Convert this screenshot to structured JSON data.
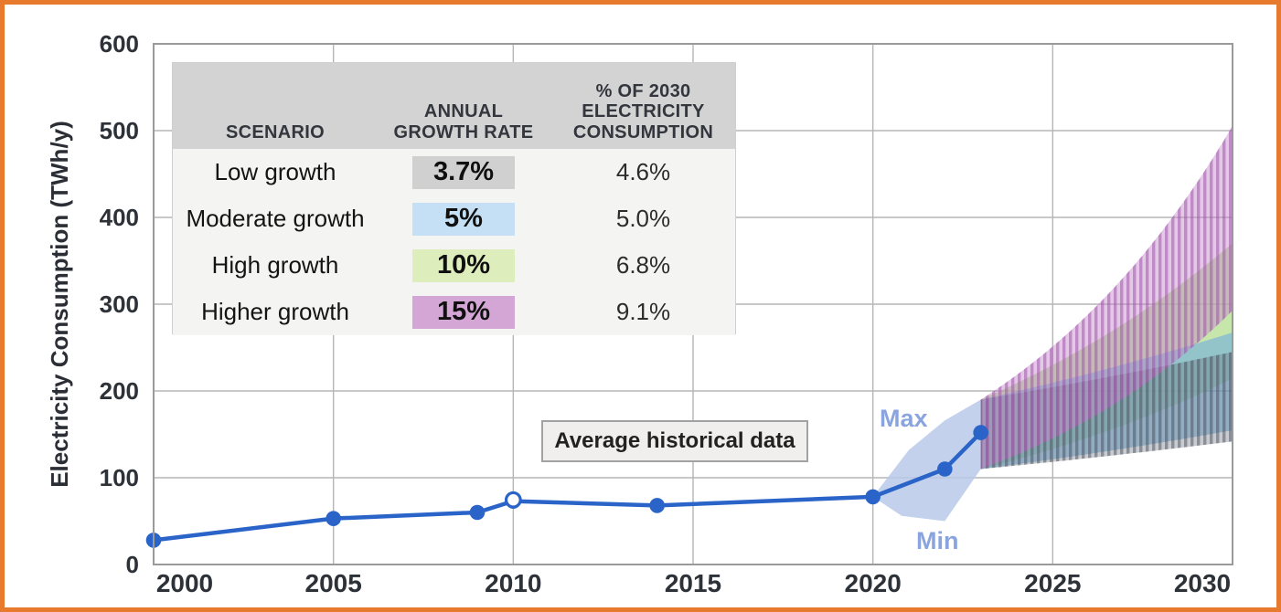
{
  "frame": {
    "border_color": "#e87a2d"
  },
  "annotations": {
    "avg_box": "Average historical data",
    "max": "Max",
    "min": "Min"
  },
  "table": {
    "headers": [
      "SCENARIO",
      "ANNUAL\nGROWTH RATE",
      "% OF 2030\nELECTRICITY\nCONSUMPTION"
    ],
    "rows": [
      {
        "scenario": "Low growth",
        "growth_rate": "3.7%",
        "chip_color": "#d0d0d0",
        "share_2030": "4.6%"
      },
      {
        "scenario": "Moderate growth",
        "growth_rate": "5%",
        "chip_color": "#c5e0f5",
        "share_2030": "5.0%"
      },
      {
        "scenario": "High growth",
        "growth_rate": "10%",
        "chip_color": "#ddedbc",
        "share_2030": "6.8%"
      },
      {
        "scenario": "Higher growth",
        "growth_rate": "15%",
        "chip_color": "#d4a6d6",
        "share_2030": "9.1%"
      }
    ]
  },
  "chart_data": {
    "type": "line",
    "title": "",
    "xlabel": "",
    "ylabel": "Electricity Consumption (TWh/y)",
    "xlim": [
      2000,
      2030
    ],
    "ylim": [
      0,
      600
    ],
    "x_ticks": [
      2000,
      2005,
      2010,
      2015,
      2020,
      2025,
      2030
    ],
    "y_ticks": [
      0,
      100,
      200,
      300,
      400,
      500,
      600
    ],
    "grid": true,
    "line_color": "#2a64c8",
    "historical_points": [
      {
        "year": 2000,
        "value": 28
      },
      {
        "year": 2005,
        "value": 53
      },
      {
        "year": 2009,
        "value": 60
      },
      {
        "year": 2010,
        "value": 73
      },
      {
        "year": 2014,
        "value": 68
      },
      {
        "year": 2020,
        "value": 78
      },
      {
        "year": 2022,
        "value": 110
      },
      {
        "year": 2023,
        "value": 152
      }
    ],
    "open_point": {
      "year": 2010,
      "value": 74.5
    },
    "range_band": {
      "color": "#b9c9e9",
      "opacity": 0.85,
      "label_color": "#8aa4de",
      "max_points": [
        {
          "year": 2020,
          "value": 78
        },
        {
          "year": 2021,
          "value": 132
        },
        {
          "year": 2022,
          "value": 166
        },
        {
          "year": 2023,
          "value": 190
        }
      ],
      "min_points": [
        {
          "year": 2020,
          "value": 78
        },
        {
          "year": 2020.8,
          "value": 56
        },
        {
          "year": 2022,
          "value": 50
        },
        {
          "year": 2023,
          "value": 110
        }
      ]
    },
    "fan": {
      "start_year": 2023,
      "end_year": 2030,
      "base_min": 110,
      "base_max": 190,
      "bands": [
        {
          "label": "High growth",
          "rate_pct": 10,
          "color": "#a9d87f",
          "opacity": 0.65,
          "hatch": null
        },
        {
          "label": "Moderate growth",
          "rate_pct": 5,
          "color": "#6fadde",
          "opacity": 0.6,
          "hatch": null
        },
        {
          "label": "Low growth",
          "rate_pct": 3.7,
          "color": "#6e7680",
          "opacity": 0.38,
          "hatch": "#3f4550"
        },
        {
          "label": "Higher growth",
          "rate_pct": 15,
          "color": "#c683c9",
          "opacity": 0.45,
          "hatch": "#9a4fa5"
        }
      ],
      "values_2030": {
        "Low growth": {
          "min": 142,
          "max": 245
        },
        "Moderate growth": {
          "min": 155,
          "max": 267
        },
        "High growth": {
          "min": 214,
          "max": 370
        },
        "Higher growth": {
          "min": 293,
          "max": 505
        }
      }
    }
  }
}
